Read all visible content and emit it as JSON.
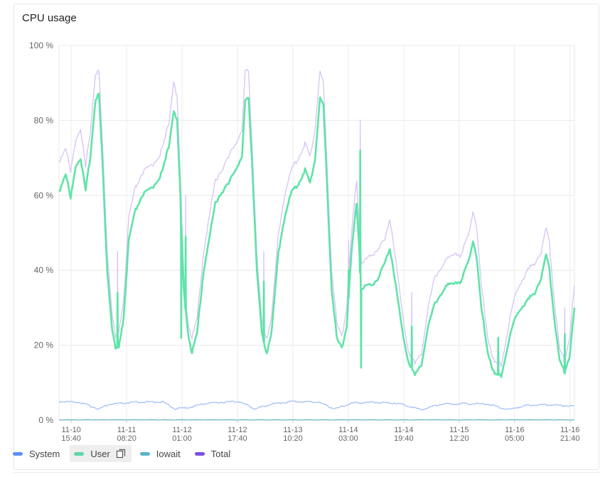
{
  "panel": {
    "title": "CPU usage"
  },
  "chart_data": {
    "type": "line",
    "title": "CPU usage",
    "xlabel": "",
    "ylabel": "",
    "ylim": [
      0,
      100
    ],
    "y_ticks": [
      0,
      20,
      40,
      60,
      80,
      100
    ],
    "y_tick_labels": [
      "0 %",
      "20 %",
      "40 %",
      "60 %",
      "80 %",
      "100 %"
    ],
    "x_range": [
      "2023-11-10 12:00",
      "2023-11-16 23:00"
    ],
    "x_ticks": [
      {
        "t": "2023-11-10 15:40",
        "line1": "11-10",
        "line2": "15:40"
      },
      {
        "t": "2023-11-11 08:20",
        "line1": "11-11",
        "line2": "08:20"
      },
      {
        "t": "2023-11-12 01:00",
        "line1": "11-12",
        "line2": "01:00"
      },
      {
        "t": "2023-11-12 17:40",
        "line1": "11-12",
        "line2": "17:40"
      },
      {
        "t": "2023-11-13 10:20",
        "line1": "11-13",
        "line2": "10:20"
      },
      {
        "t": "2023-11-14 03:00",
        "line1": "11-14",
        "line2": "03:00"
      },
      {
        "t": "2023-11-14 19:40",
        "line1": "11-14",
        "line2": "19:40"
      },
      {
        "t": "2023-11-15 12:20",
        "line1": "11-15",
        "line2": "12:20"
      },
      {
        "t": "2023-11-16 05:00",
        "line1": "11-16",
        "line2": "05:00"
      },
      {
        "t": "2023-11-16 21:40",
        "line1": "11-16",
        "line2": "21:40"
      }
    ],
    "grid": true,
    "legend_position": "bottom-left",
    "series": [
      {
        "name": "System",
        "color": "#5b8ff9",
        "stroke": "#a9c4f7",
        "visible": true,
        "points": [
          [
            "2023-11-10 12:00",
            5.0
          ],
          [
            "2023-11-10 18:00",
            4.8
          ],
          [
            "2023-11-11 00:00",
            3.0
          ],
          [
            "2023-11-11 03:00",
            4.2
          ],
          [
            "2023-11-11 10:00",
            4.7
          ],
          [
            "2023-11-11 19:00",
            4.9
          ],
          [
            "2023-11-11 23:00",
            3.0
          ],
          [
            "2023-11-12 04:00",
            3.5
          ],
          [
            "2023-11-12 08:00",
            4.5
          ],
          [
            "2023-11-12 18:00",
            5.0
          ],
          [
            "2023-11-12 23:00",
            3.0
          ],
          [
            "2023-11-13 04:00",
            4.3
          ],
          [
            "2023-11-13 10:00",
            5.0
          ],
          [
            "2023-11-13 18:00",
            4.8
          ],
          [
            "2023-11-13 23:00",
            3.0
          ],
          [
            "2023-11-14 04:00",
            4.5
          ],
          [
            "2023-11-14 10:00",
            4.8
          ],
          [
            "2023-11-14 18:00",
            4.5
          ],
          [
            "2023-11-15 01:00",
            2.8
          ],
          [
            "2023-11-15 07:00",
            4.3
          ],
          [
            "2023-11-15 14:00",
            4.4
          ],
          [
            "2023-11-15 21:00",
            4.3
          ],
          [
            "2023-11-16 03:00",
            2.8
          ],
          [
            "2023-11-16 09:00",
            4.0
          ],
          [
            "2023-11-16 16:00",
            4.1
          ],
          [
            "2023-11-16 20:00",
            3.9
          ],
          [
            "2023-11-16 23:00",
            3.8
          ]
        ]
      },
      {
        "name": "User",
        "color": "#5ad8a6",
        "stroke": "#5fe3a8",
        "visible": true,
        "highlighted": true,
        "points": [
          [
            "2023-11-10 12:00",
            61
          ],
          [
            "2023-11-10 14:00",
            66
          ],
          [
            "2023-11-10 15:30",
            59
          ],
          [
            "2023-11-10 17:00",
            68
          ],
          [
            "2023-11-10 18:30",
            70
          ],
          [
            "2023-11-10 20:00",
            61
          ],
          [
            "2023-11-10 21:30",
            71
          ],
          [
            "2023-11-10 23:00",
            86
          ],
          [
            "2023-11-11 00:00",
            87
          ],
          [
            "2023-11-11 01:00",
            70
          ],
          [
            "2023-11-11 02:30",
            40
          ],
          [
            "2023-11-11 04:00",
            24
          ],
          [
            "2023-11-11 05:00",
            19
          ],
          [
            "2023-11-11 06:00",
            19
          ],
          [
            "2023-11-11 07:30",
            28
          ],
          [
            "2023-11-11 09:00",
            48
          ],
          [
            "2023-11-11 11:00",
            56
          ],
          [
            "2023-11-11 13:00",
            60
          ],
          [
            "2023-11-11 16:00",
            62
          ],
          [
            "2023-11-11 19:00",
            66
          ],
          [
            "2023-11-11 21:00",
            73
          ],
          [
            "2023-11-11 22:30",
            83
          ],
          [
            "2023-11-11 23:30",
            80
          ],
          [
            "2023-11-12 00:30",
            60
          ],
          [
            "2023-11-12 01:30",
            35
          ],
          [
            "2023-11-12 03:00",
            22
          ],
          [
            "2023-11-12 04:00",
            18
          ],
          [
            "2023-11-12 05:30",
            23
          ],
          [
            "2023-11-12 07:30",
            40
          ],
          [
            "2023-11-12 09:30",
            50
          ],
          [
            "2023-11-12 11:00",
            58
          ],
          [
            "2023-11-12 13:00",
            61
          ],
          [
            "2023-11-12 15:00",
            63
          ],
          [
            "2023-11-12 17:00",
            67
          ],
          [
            "2023-11-12 19:00",
            70
          ],
          [
            "2023-11-12 20:00",
            85
          ],
          [
            "2023-11-12 21:00",
            86
          ],
          [
            "2023-11-12 22:00",
            70
          ],
          [
            "2023-11-12 23:30",
            40
          ],
          [
            "2023-11-13 01:00",
            23
          ],
          [
            "2023-11-13 02:30",
            18
          ],
          [
            "2023-11-13 04:00",
            24
          ],
          [
            "2023-11-13 06:00",
            45
          ],
          [
            "2023-11-13 08:00",
            55
          ],
          [
            "2023-11-13 10:00",
            61
          ],
          [
            "2023-11-13 12:00",
            63
          ],
          [
            "2023-11-13 14:00",
            67
          ],
          [
            "2023-11-13 15:30",
            63
          ],
          [
            "2023-11-13 17:00",
            70
          ],
          [
            "2023-11-13 18:30",
            86
          ],
          [
            "2023-11-13 19:30",
            84
          ],
          [
            "2023-11-13 20:30",
            65
          ],
          [
            "2023-11-13 22:00",
            35
          ],
          [
            "2023-11-13 23:30",
            22
          ],
          [
            "2023-11-14 01:00",
            19
          ],
          [
            "2023-11-14 02:30",
            25
          ],
          [
            "2023-11-14 04:00",
            45
          ],
          [
            "2023-11-14 05:30",
            58
          ],
          [
            "2023-11-14 07:00",
            35
          ],
          [
            "2023-11-14 08:30",
            36
          ],
          [
            "2023-11-14 10:00",
            36
          ],
          [
            "2023-11-14 12:00",
            38
          ],
          [
            "2023-11-14 14:00",
            42
          ],
          [
            "2023-11-14 15:30",
            46
          ],
          [
            "2023-11-14 17:00",
            38
          ],
          [
            "2023-11-14 19:00",
            25
          ],
          [
            "2023-11-14 21:00",
            16
          ],
          [
            "2023-11-14 23:00",
            12
          ],
          [
            "2023-11-15 01:00",
            15
          ],
          [
            "2023-11-15 03:00",
            25
          ],
          [
            "2023-11-15 05:00",
            31
          ],
          [
            "2023-11-15 07:00",
            34
          ],
          [
            "2023-11-15 09:00",
            36
          ],
          [
            "2023-11-15 11:00",
            37
          ],
          [
            "2023-11-15 13:00",
            37
          ],
          [
            "2023-11-15 15:00",
            42
          ],
          [
            "2023-11-15 16:30",
            48
          ],
          [
            "2023-11-15 17:30",
            44
          ],
          [
            "2023-11-15 19:00",
            30
          ],
          [
            "2023-11-15 21:00",
            18
          ],
          [
            "2023-11-15 23:00",
            12
          ],
          [
            "2023-11-16 01:00",
            12
          ],
          [
            "2023-11-16 03:00",
            20
          ],
          [
            "2023-11-16 05:00",
            27
          ],
          [
            "2023-11-16 07:00",
            30
          ],
          [
            "2023-11-16 09:00",
            32
          ],
          [
            "2023-11-16 11:00",
            34
          ],
          [
            "2023-11-16 13:00",
            38
          ],
          [
            "2023-11-16 14:30",
            44
          ],
          [
            "2023-11-16 15:30",
            40
          ],
          [
            "2023-11-16 17:00",
            27
          ],
          [
            "2023-11-16 18:30",
            16
          ],
          [
            "2023-11-16 20:00",
            13
          ],
          [
            "2023-11-16 21:30",
            17
          ],
          [
            "2023-11-16 23:00",
            30
          ]
        ],
        "spikes": [
          [
            "2023-11-11 05:30",
            34
          ],
          [
            "2023-11-12 00:40",
            22
          ],
          [
            "2023-11-12 02:00",
            49
          ],
          [
            "2023-11-13 01:30",
            37
          ],
          [
            "2023-11-14 03:00",
            40
          ],
          [
            "2023-11-14 06:30",
            72
          ],
          [
            "2023-11-14 06:45",
            14
          ],
          [
            "2023-11-14 22:00",
            25
          ],
          [
            "2023-11-16 00:00",
            22
          ],
          [
            "2023-11-16 20:00",
            23
          ]
        ]
      },
      {
        "name": "Iowait",
        "color": "#5ab4c8",
        "stroke": "#5ab4c8",
        "visible": true,
        "points": [
          [
            "2023-11-10 12:00",
            0.1
          ],
          [
            "2023-11-16 23:00",
            0.1
          ]
        ]
      },
      {
        "name": "Total",
        "color": "#7b4fde",
        "stroke": "#d9c6f5",
        "visible": true,
        "points": [
          [
            "2023-11-10 12:00",
            69
          ],
          [
            "2023-11-10 14:00",
            73
          ],
          [
            "2023-11-10 15:30",
            66
          ],
          [
            "2023-11-10 17:00",
            75
          ],
          [
            "2023-11-10 18:30",
            78
          ],
          [
            "2023-11-10 20:00",
            67
          ],
          [
            "2023-11-10 21:30",
            78
          ],
          [
            "2023-11-10 23:00",
            93
          ],
          [
            "2023-11-11 00:00",
            93
          ],
          [
            "2023-11-11 01:00",
            75
          ],
          [
            "2023-11-11 02:30",
            45
          ],
          [
            "2023-11-11 04:00",
            28
          ],
          [
            "2023-11-11 05:00",
            22
          ],
          [
            "2023-11-11 06:00",
            23
          ],
          [
            "2023-11-11 07:30",
            33
          ],
          [
            "2023-11-11 09:00",
            54
          ],
          [
            "2023-11-11 11:00",
            62
          ],
          [
            "2023-11-11 13:00",
            66
          ],
          [
            "2023-11-11 16:00",
            68
          ],
          [
            "2023-11-11 19:00",
            72
          ],
          [
            "2023-11-11 21:00",
            79
          ],
          [
            "2023-11-11 22:30",
            91
          ],
          [
            "2023-11-11 23:30",
            86
          ],
          [
            "2023-11-12 00:30",
            64
          ],
          [
            "2023-11-12 01:30",
            38
          ],
          [
            "2023-11-12 03:00",
            25
          ],
          [
            "2023-11-12 04:00",
            22
          ],
          [
            "2023-11-12 05:30",
            27
          ],
          [
            "2023-11-12 07:30",
            45
          ],
          [
            "2023-11-12 09:30",
            56
          ],
          [
            "2023-11-12 11:00",
            64
          ],
          [
            "2023-11-12 13:00",
            67
          ],
          [
            "2023-11-12 15:00",
            70
          ],
          [
            "2023-11-12 17:00",
            74
          ],
          [
            "2023-11-12 19:00",
            77
          ],
          [
            "2023-11-12 20:00",
            93
          ],
          [
            "2023-11-12 21:00",
            93
          ],
          [
            "2023-11-12 22:00",
            75
          ],
          [
            "2023-11-12 23:30",
            44
          ],
          [
            "2023-11-13 01:00",
            26
          ],
          [
            "2023-11-13 02:30",
            22
          ],
          [
            "2023-11-13 04:00",
            28
          ],
          [
            "2023-11-13 06:00",
            50
          ],
          [
            "2023-11-13 08:00",
            61
          ],
          [
            "2023-11-13 10:00",
            67
          ],
          [
            "2023-11-13 12:00",
            70
          ],
          [
            "2023-11-13 14:00",
            74
          ],
          [
            "2023-11-13 15:30",
            70
          ],
          [
            "2023-11-13 17:00",
            78
          ],
          [
            "2023-11-13 18:30",
            93
          ],
          [
            "2023-11-13 19:30",
            90
          ],
          [
            "2023-11-13 20:30",
            70
          ],
          [
            "2023-11-13 22:00",
            40
          ],
          [
            "2023-11-13 23:30",
            26
          ],
          [
            "2023-11-14 01:00",
            22
          ],
          [
            "2023-11-14 02:30",
            30
          ],
          [
            "2023-11-14 04:00",
            50
          ],
          [
            "2023-11-14 05:30",
            64
          ],
          [
            "2023-11-14 07:00",
            42
          ],
          [
            "2023-11-14 08:30",
            43
          ],
          [
            "2023-11-14 10:00",
            44
          ],
          [
            "2023-11-14 12:00",
            46
          ],
          [
            "2023-11-14 14:00",
            48
          ],
          [
            "2023-11-14 15:30",
            54
          ],
          [
            "2023-11-14 17:00",
            45
          ],
          [
            "2023-11-14 19:00",
            30
          ],
          [
            "2023-11-14 21:00",
            19
          ],
          [
            "2023-11-14 23:00",
            15
          ],
          [
            "2023-11-15 01:00",
            18
          ],
          [
            "2023-11-15 03:00",
            30
          ],
          [
            "2023-11-15 05:00",
            38
          ],
          [
            "2023-11-15 07:00",
            41
          ],
          [
            "2023-11-15 09:00",
            43
          ],
          [
            "2023-11-15 11:00",
            45
          ],
          [
            "2023-11-15 13:00",
            44
          ],
          [
            "2023-11-15 15:00",
            49
          ],
          [
            "2023-11-15 16:30",
            56
          ],
          [
            "2023-11-15 17:30",
            52
          ],
          [
            "2023-11-15 19:00",
            36
          ],
          [
            "2023-11-15 21:00",
            22
          ],
          [
            "2023-11-15 23:00",
            15
          ],
          [
            "2023-11-16 01:00",
            15
          ],
          [
            "2023-11-16 03:00",
            24
          ],
          [
            "2023-11-16 05:00",
            33
          ],
          [
            "2023-11-16 07:00",
            37
          ],
          [
            "2023-11-16 09:00",
            40
          ],
          [
            "2023-11-16 11:00",
            42
          ],
          [
            "2023-11-16 13:00",
            45
          ],
          [
            "2023-11-16 14:30",
            51
          ],
          [
            "2023-11-16 15:30",
            47
          ],
          [
            "2023-11-16 17:00",
            32
          ],
          [
            "2023-11-16 18:30",
            19
          ],
          [
            "2023-11-16 20:00",
            16
          ],
          [
            "2023-11-16 21:30",
            22
          ],
          [
            "2023-11-16 23:00",
            36
          ]
        ],
        "spikes": [
          [
            "2023-11-11 05:30",
            45
          ],
          [
            "2023-11-12 02:00",
            60
          ],
          [
            "2023-11-13 01:30",
            45
          ],
          [
            "2023-11-14 03:00",
            48
          ],
          [
            "2023-11-14 06:30",
            80
          ],
          [
            "2023-11-14 22:00",
            34
          ],
          [
            "2023-11-16 20:00",
            30
          ]
        ]
      }
    ]
  },
  "legend": {
    "items": [
      {
        "label": "System",
        "color": "#5b8ff9"
      },
      {
        "label": "User",
        "color": "#5ad8a6"
      },
      {
        "label": "Iowait",
        "color": "#5ab4c8"
      },
      {
        "label": "Total",
        "color": "#7b4fde"
      }
    ],
    "copy_icon": "copy-icon"
  }
}
